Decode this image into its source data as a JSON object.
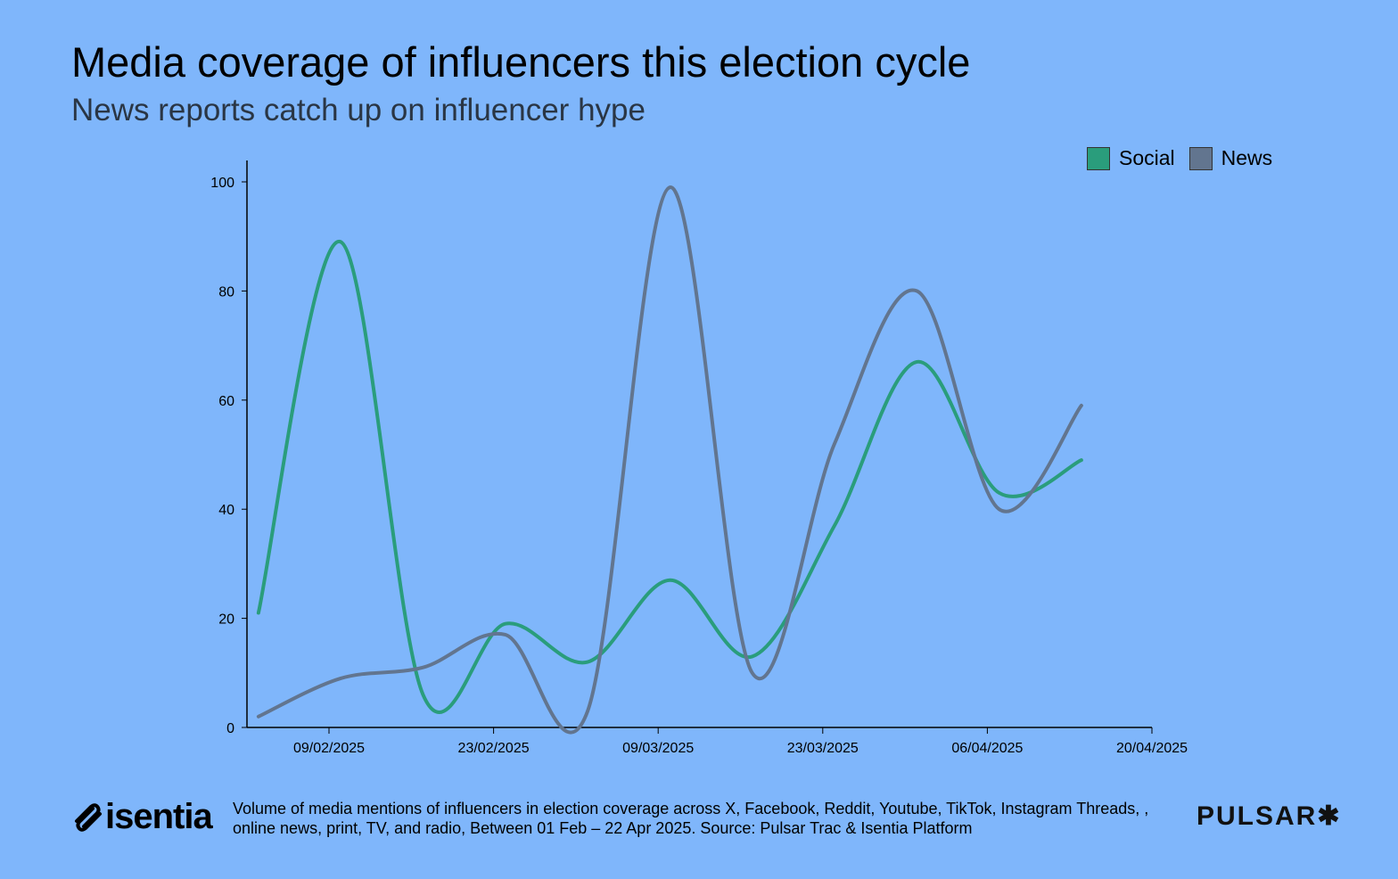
{
  "title": "Media coverage of influencers this election cycle",
  "subtitle": "News reports catch up on influencer hype",
  "footnote": "Volume of media mentions of influencers in election coverage across X, Facebook, Reddit, Youtube, TikTok, Instagram Threads, , online news, print, TV, and radio, Between 01 Feb – 22 Apr 2025. Source: Pulsar Trac & Isentia Platform",
  "logos": {
    "left": "isentia",
    "right": "PULSAR✱"
  },
  "chart_data": {
    "type": "line",
    "title": "",
    "xlabel": "",
    "ylabel": "",
    "x": [
      "03/02/2025",
      "10/02/2025",
      "17/02/2025",
      "24/02/2025",
      "03/03/2025",
      "10/03/2025",
      "17/03/2025",
      "24/03/2025",
      "31/03/2025",
      "07/04/2025",
      "14/04/2025"
    ],
    "x_ticks": [
      "09/02/2025",
      "23/02/2025",
      "09/03/2025",
      "23/03/2025",
      "06/04/2025",
      "20/04/2025"
    ],
    "y_ticks": [
      0,
      20,
      40,
      60,
      80,
      100
    ],
    "ylim": [
      0,
      100
    ],
    "grid": false,
    "legend_position": "top-right",
    "series": [
      {
        "name": "Social",
        "color": "#2a9d7c",
        "values": [
          21,
          89,
          6,
          19,
          12,
          27,
          13,
          37,
          67,
          43,
          49
        ]
      },
      {
        "name": "News",
        "color": "#62758f",
        "values": [
          2,
          9,
          11,
          17,
          3,
          99,
          10,
          52,
          80,
          40,
          59
        ]
      }
    ]
  }
}
